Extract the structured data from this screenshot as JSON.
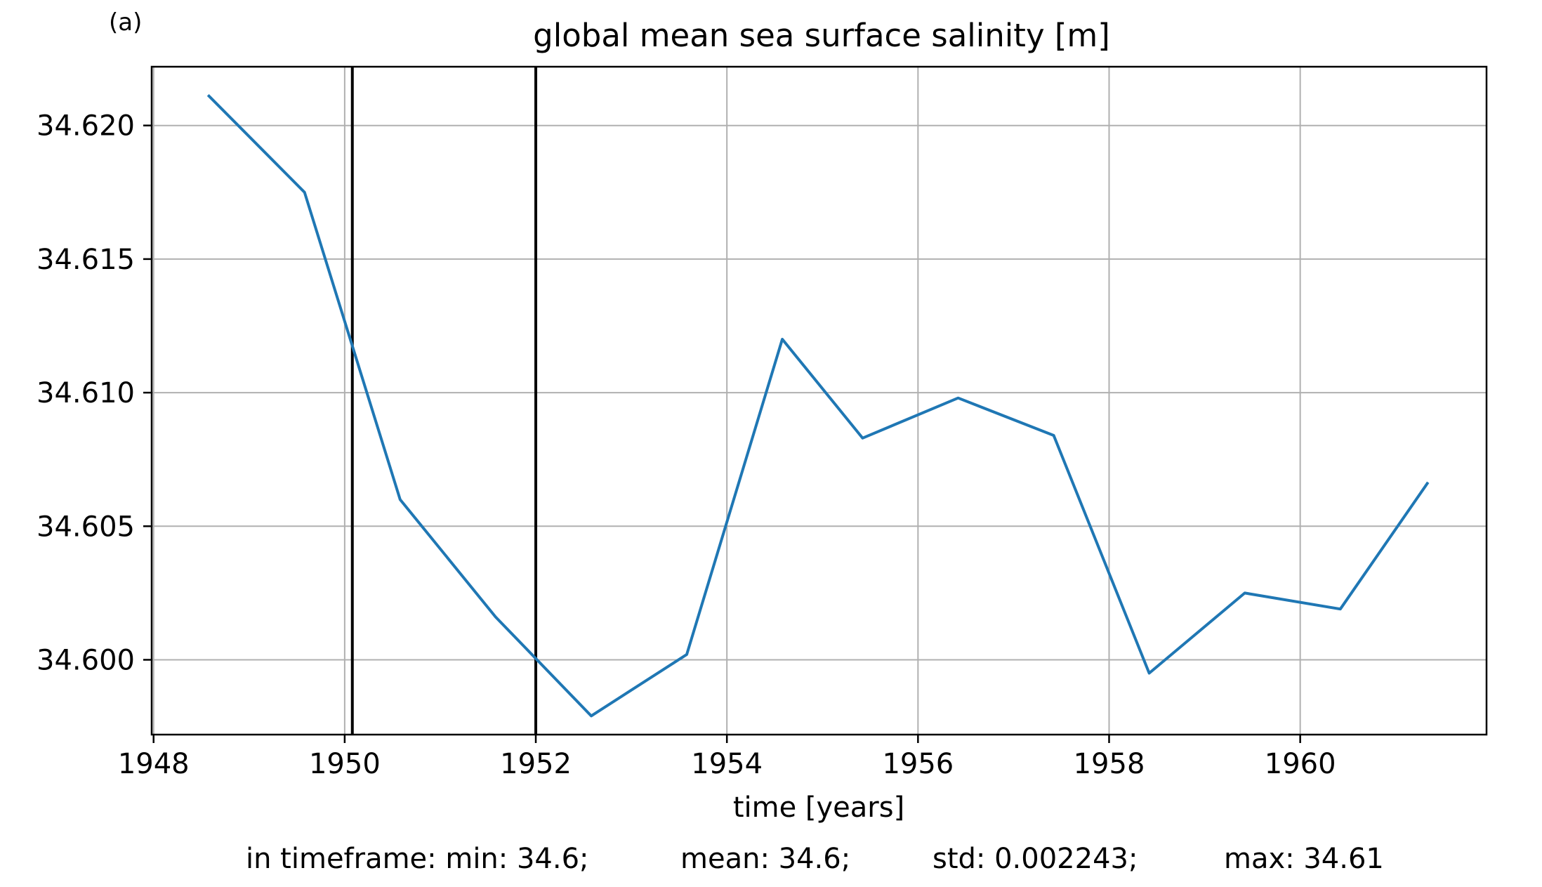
{
  "panel_label": "(a)",
  "chart_data": {
    "type": "line",
    "title": "global mean sea surface salinity [m]",
    "xlabel": "time [years]",
    "ylabel": "",
    "xlim": [
      1947.98,
      1961.95
    ],
    "ylim": [
      34.5972,
      34.6222
    ],
    "xticks": [
      1948,
      1950,
      1952,
      1954,
      1956,
      1958,
      1960
    ],
    "xtick_labels": [
      "1948",
      "1950",
      "1952",
      "1954",
      "1956",
      "1958",
      "1960"
    ],
    "yticks": [
      34.6,
      34.605,
      34.61,
      34.615,
      34.62
    ],
    "ytick_labels": [
      "34.600",
      "34.605",
      "34.610",
      "34.615",
      "34.620"
    ],
    "grid": true,
    "line_color": "#1f77b4",
    "vertical_markers": [
      1950.08,
      1952.0
    ],
    "series": [
      {
        "x": [
          1948.58,
          1949.58,
          1950.58,
          1951.58,
          1952.58,
          1953.58,
          1954.58,
          1955.42,
          1956.42,
          1957.42,
          1958.42,
          1959.42,
          1960.42,
          1961.33
        ],
        "values": [
          34.6211,
          34.6175,
          34.606,
          34.6016,
          34.5979,
          34.6002,
          34.612,
          34.6083,
          34.6098,
          34.6084,
          34.5995,
          34.6025,
          34.6019,
          34.6066
        ]
      }
    ]
  },
  "stats": {
    "min": "in timeframe: min: 34.6;",
    "mean": "mean: 34.6;",
    "std": "std: 0.002243;",
    "max": "max: 34.61"
  }
}
